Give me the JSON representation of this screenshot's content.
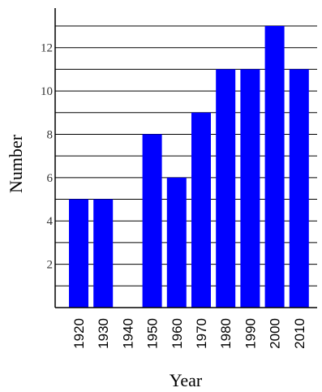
{
  "chart_data": {
    "type": "bar",
    "title": "",
    "xlabel": "Year",
    "ylabel": "Number",
    "categories": [
      "1920",
      "1930",
      "1940",
      "1950",
      "1960",
      "1970",
      "1980",
      "1990",
      "2000",
      "2010"
    ],
    "values": [
      5,
      5,
      0,
      8,
      6,
      9,
      11,
      11,
      13,
      11
    ],
    "ylim": [
      0,
      13.3
    ],
    "yticks": [
      2,
      4,
      6,
      8,
      10,
      12
    ],
    "grid_step": 1,
    "grid": true,
    "legend": "none",
    "bar_color": "#0000ff",
    "tick_labels": {
      "y": [
        "2",
        "4",
        "6",
        "8",
        "10",
        "12"
      ]
    }
  }
}
